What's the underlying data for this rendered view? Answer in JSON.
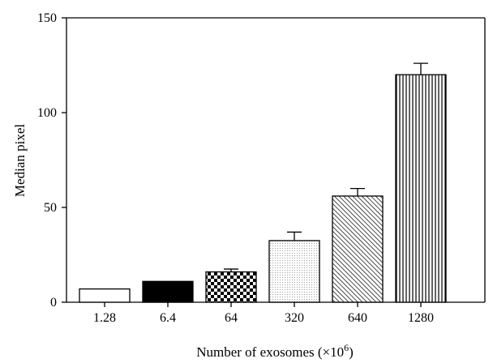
{
  "chart_data": {
    "type": "bar",
    "title": "",
    "xlabel": "Number of exosomes (×10",
    "xlabel_superscript": "6",
    "xlabel_suffix": ")",
    "ylabel": "Median pixel",
    "ylim": [
      0,
      150
    ],
    "yticks": [
      0,
      50,
      100,
      150
    ],
    "categories": [
      "1.28",
      "6.4",
      "64",
      "320",
      "640",
      "1280"
    ],
    "values": [
      7,
      11,
      16,
      32.5,
      56,
      120
    ],
    "errors": [
      0,
      0,
      1.5,
      4.5,
      4,
      6
    ],
    "patterns": [
      "white",
      "solid-black",
      "checker",
      "fine-dots",
      "diagonal-hatch",
      "vertical-lines"
    ],
    "grid": false,
    "legend": "none"
  }
}
